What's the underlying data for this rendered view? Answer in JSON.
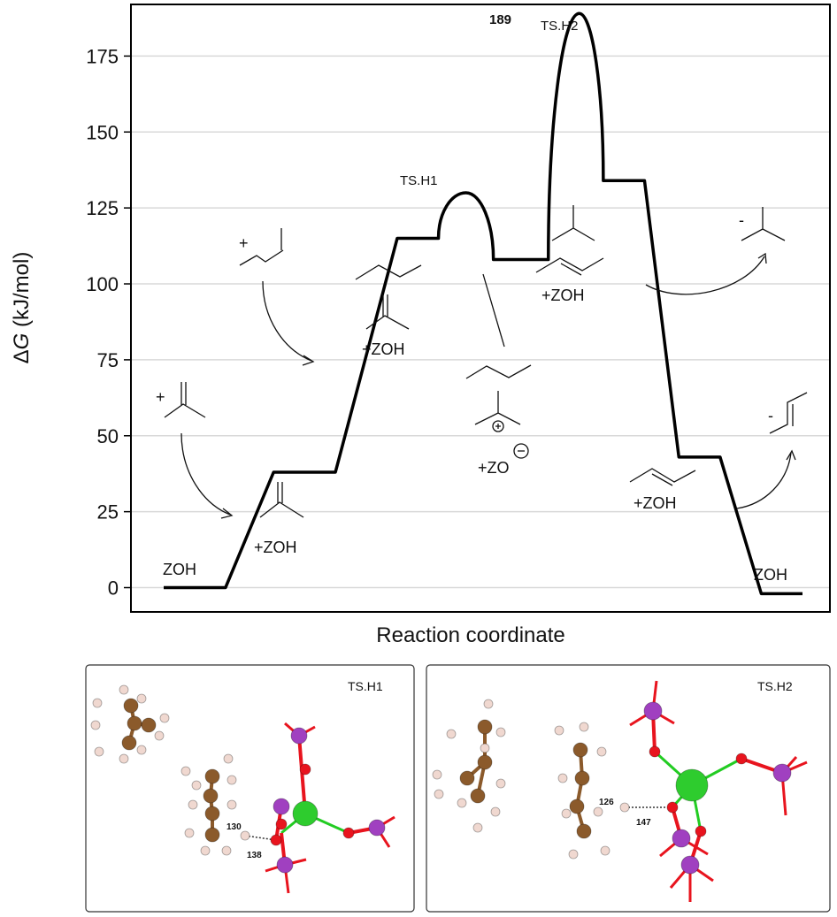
{
  "chart_data": {
    "type": "line",
    "title": "",
    "xlabel": "Reaction coordinate",
    "ylabel": "ΔG (kJ/mol)",
    "ylabel_parts": {
      "symbol": "Δ",
      "var": "G",
      "unit": " (kJ/mol)"
    },
    "ylim": [
      -8,
      192
    ],
    "yticks": [
      0,
      25,
      50,
      75,
      100,
      125,
      150,
      175
    ],
    "grid": true,
    "series": [
      {
        "points": [
          {
            "x": 0.0,
            "y": 0
          },
          {
            "x": 0.9,
            "y": 0
          },
          {
            "x": 1.6,
            "y": 38
          },
          {
            "x": 2.5,
            "y": 38
          },
          {
            "x": 3.4,
            "y": 115
          },
          {
            "x": 4.0,
            "y": 115
          },
          {
            "x": 4.4,
            "y": 130
          },
          {
            "x": 4.8,
            "y": 108
          },
          {
            "x": 5.6,
            "y": 108
          },
          {
            "x": 6.05,
            "y": 189
          },
          {
            "x": 6.4,
            "y": 134
          },
          {
            "x": 7.0,
            "y": 134
          },
          {
            "x": 7.5,
            "y": 43
          },
          {
            "x": 8.1,
            "y": 43
          },
          {
            "x": 8.7,
            "y": -2
          },
          {
            "x": 9.3,
            "y": -2
          }
        ]
      }
    ],
    "annotations": [
      {
        "text": "ZOH",
        "x": 0.0,
        "y": 0
      },
      {
        "text": "+ZOH",
        "x": 1.8,
        "y": 38
      },
      {
        "text": "+ZOH",
        "x": 3.5,
        "y": 115
      },
      {
        "text": "TS.H1",
        "x": 4.4,
        "y": 130
      },
      {
        "text": "+ZO",
        "x": 5.1,
        "y": 108
      },
      {
        "text": "189",
        "x": 6.05,
        "y": 189
      },
      {
        "text": "TS.H2",
        "x": 6.05,
        "y": 189
      },
      {
        "text": "+ZOH",
        "x": 6.5,
        "y": 134
      },
      {
        "text": "+ZOH",
        "x": 7.5,
        "y": 43
      },
      {
        "text": "ZOH",
        "x": 8.8,
        "y": -2
      }
    ],
    "charges": [
      "+",
      "+",
      "-",
      "-",
      "+",
      "−"
    ]
  },
  "panels": [
    {
      "title": "TS.H1",
      "distances": [
        "130",
        "138"
      ]
    },
    {
      "title": "TS.H2",
      "distances": [
        "126",
        "147"
      ]
    }
  ],
  "colors": {
    "line": "#000000",
    "grid": "#d9d9d9",
    "carbon": "#8b5a2b",
    "hydrogen": "#f0d8d0",
    "oxygen": "#e8141e",
    "phosphorus": "#a040c0",
    "metal": "#2ecc2e",
    "bond_green": "#22cc22"
  }
}
